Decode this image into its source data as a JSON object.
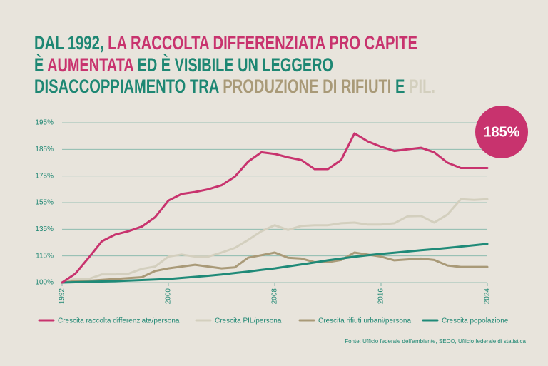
{
  "chart_data": {
    "type": "line",
    "title": [
      [
        {
          "text": "DAL 1992, ",
          "color": "#1e8773"
        },
        {
          "text": "LA RACCOLTA DIFFERENZIATA PRO CAPITE",
          "color": "#c8336e"
        }
      ],
      [
        {
          "text": "È ",
          "color": "#1e8773"
        },
        {
          "text": "AUMENTATA",
          "color": "#c8336e"
        },
        {
          "text": " ED È VISIBILE UN LEGGERO",
          "color": "#1e8773"
        }
      ],
      [
        {
          "text": "DISACCOPPIAMENTO TRA ",
          "color": "#1e8773"
        },
        {
          "text": "PRODUZIONE DI RIFIUTI",
          "color": "#a99a78"
        },
        {
          "text": " E ",
          "color": "#1e8773"
        },
        {
          "text": "PIL.",
          "color": "#d3cfbe"
        }
      ]
    ],
    "x": [
      1992,
      1993,
      1994,
      1995,
      1996,
      1997,
      1998,
      1999,
      2000,
      2001,
      2002,
      2003,
      2004,
      2005,
      2006,
      2007,
      2008,
      2009,
      2010,
      2011,
      2012,
      2013,
      2014,
      2015,
      2016,
      2017,
      2018,
      2019,
      2020,
      2021,
      2022,
      2023,
      2024
    ],
    "xlim": [
      1992,
      2024
    ],
    "xticks": [
      1992,
      2000,
      2008,
      2016,
      2024
    ],
    "ylim": [
      100,
      195
    ],
    "yticks": [
      {
        "value": 100,
        "label": "100%"
      },
      {
        "value": 115,
        "label": "115%"
      },
      {
        "value": 135,
        "label": "135%"
      },
      {
        "value": 155,
        "label": "155%"
      },
      {
        "value": 175,
        "label": "175%"
      },
      {
        "value": 185,
        "label": "185%"
      },
      {
        "value": 195,
        "label": "195%"
      }
    ],
    "grid": true,
    "series": [
      {
        "name": "Crescita raccolta differenziata/persona",
        "color": "#c8336e",
        "values": [
          100,
          105,
          114,
          126,
          131,
          133.5,
          137,
          144,
          156.5,
          161.5,
          163,
          165,
          168,
          174.5,
          180.4,
          183.9,
          183.3,
          182,
          181,
          177.6,
          177.6,
          181,
          191,
          188,
          186,
          184.4,
          185,
          185.6,
          183.9,
          180,
          178,
          178,
          178
        ]
      },
      {
        "name": "Crescita PIL/persona",
        "color": "#d3cfbe",
        "values": [
          100,
          102,
          102,
          104.6,
          104.6,
          105,
          107.7,
          109,
          114.6,
          116,
          114.6,
          114.6,
          117.5,
          121,
          127,
          133.5,
          138,
          134.5,
          137.5,
          138,
          138,
          139.5,
          140,
          138.5,
          138.5,
          139.5,
          144.7,
          145,
          140,
          146,
          157.5,
          157,
          157.5
        ]
      },
      {
        "name": "Crescita rifiuti urbani/persona",
        "color": "#a99a78",
        "values": [
          100,
          100.8,
          101,
          101.5,
          102,
          102.5,
          103,
          106.5,
          108,
          109,
          110,
          109,
          108,
          108.5,
          114,
          115.5,
          117.5,
          114,
          113.5,
          111.5,
          111.5,
          112.7,
          117.5,
          116,
          114.6,
          112.5,
          113,
          113.5,
          112.7,
          109.6,
          108.8,
          108.8,
          108.8
        ]
      },
      {
        "name": "Crescita popolazione",
        "color": "#1f8a78",
        "values": [
          100,
          100.2,
          100.4,
          100.6,
          100.8,
          101.1,
          101.4,
          101.7,
          102,
          102.6,
          103.2,
          103.8,
          104.5,
          105.4,
          106.2,
          107.1,
          108,
          109.1,
          110.2,
          111.3,
          112.5,
          113.5,
          114.5,
          115.5,
          116.5,
          117.4,
          118.3,
          119.2,
          120,
          121,
          122,
          123,
          124
        ]
      }
    ],
    "annotation": {
      "text": "185%",
      "color": "#c8336e"
    },
    "source": "Fonte: Ufficio federale dell'ambiente, SECO, Ufficio federale di statistica"
  }
}
